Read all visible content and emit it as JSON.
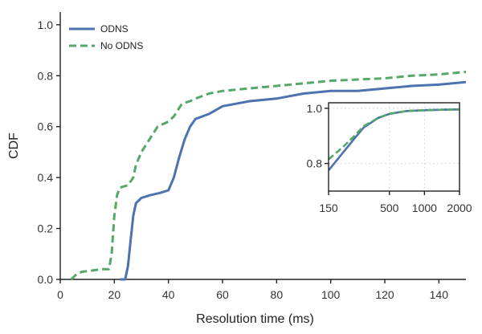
{
  "chart_data": [
    {
      "type": "line",
      "title": "",
      "xlabel": "Resolution time (ms)",
      "ylabel": "CDF",
      "xlim": [
        0,
        150
      ],
      "ylim": [
        0,
        1.05
      ],
      "xticks": [
        0,
        20,
        40,
        60,
        80,
        100,
        120,
        140
      ],
      "yticks": [
        0.0,
        0.2,
        0.4,
        0.6,
        0.8,
        1.0
      ],
      "x_tick_labels": [
        "0",
        "20",
        "40",
        "60",
        "80",
        "100",
        "120",
        "140"
      ],
      "y_tick_labels": [
        "0.0",
        "0.2",
        "0.4",
        "0.6",
        "0.8",
        "1.0"
      ],
      "grid": false,
      "legend_position": "top-left",
      "series": [
        {
          "name": "ODNS",
          "color": "#4c72b0",
          "style": "solid",
          "x": [
            22,
            24,
            25,
            26,
            27,
            28,
            30,
            33,
            37,
            40,
            42,
            44,
            46,
            48,
            50,
            55,
            60,
            65,
            70,
            80,
            90,
            100,
            110,
            120,
            130,
            140,
            150
          ],
          "y": [
            0.0,
            0.0,
            0.05,
            0.15,
            0.25,
            0.3,
            0.32,
            0.33,
            0.34,
            0.35,
            0.4,
            0.48,
            0.55,
            0.6,
            0.63,
            0.65,
            0.68,
            0.69,
            0.7,
            0.71,
            0.73,
            0.74,
            0.74,
            0.75,
            0.76,
            0.765,
            0.775
          ]
        },
        {
          "name": "No ODNS",
          "color": "#55a868",
          "style": "dashed",
          "x": [
            4,
            6,
            8,
            12,
            15,
            18,
            19,
            20,
            21,
            22,
            25,
            27,
            28,
            30,
            33,
            36,
            40,
            42,
            45,
            48,
            50,
            55,
            60,
            70,
            80,
            90,
            100,
            110,
            120,
            130,
            140,
            150
          ],
          "y": [
            0.0,
            0.02,
            0.03,
            0.035,
            0.04,
            0.04,
            0.1,
            0.25,
            0.33,
            0.36,
            0.37,
            0.4,
            0.45,
            0.5,
            0.55,
            0.6,
            0.62,
            0.64,
            0.69,
            0.7,
            0.71,
            0.73,
            0.74,
            0.75,
            0.76,
            0.77,
            0.78,
            0.785,
            0.79,
            0.8,
            0.805,
            0.815
          ]
        }
      ]
    },
    {
      "type": "line",
      "title": "",
      "xlabel": "",
      "ylabel": "",
      "xscale": "log",
      "xlim": [
        150,
        2000
      ],
      "ylim": [
        0.7,
        1.02
      ],
      "xticks": [
        150,
        500,
        1000,
        2000
      ],
      "yticks": [
        0.8,
        1.0
      ],
      "x_tick_labels": [
        "150",
        "500",
        "1000",
        "2000"
      ],
      "y_tick_labels": [
        "0.8",
        "1.0"
      ],
      "grid": true,
      "legend_position": "none",
      "series": [
        {
          "color": "#4c72b0",
          "style": "solid",
          "x": [
            150,
            200,
            250,
            300,
            400,
            500,
            700,
            1000,
            1500,
            2000
          ],
          "y": [
            0.775,
            0.84,
            0.89,
            0.93,
            0.965,
            0.98,
            0.99,
            0.993,
            0.995,
            0.996
          ]
        },
        {
          "color": "#55a868",
          "style": "dashed",
          "x": [
            150,
            200,
            250,
            300,
            400,
            500,
            700,
            1000,
            1500,
            2000
          ],
          "y": [
            0.815,
            0.86,
            0.9,
            0.935,
            0.965,
            0.98,
            0.99,
            0.993,
            0.995,
            0.996
          ]
        }
      ]
    }
  ]
}
